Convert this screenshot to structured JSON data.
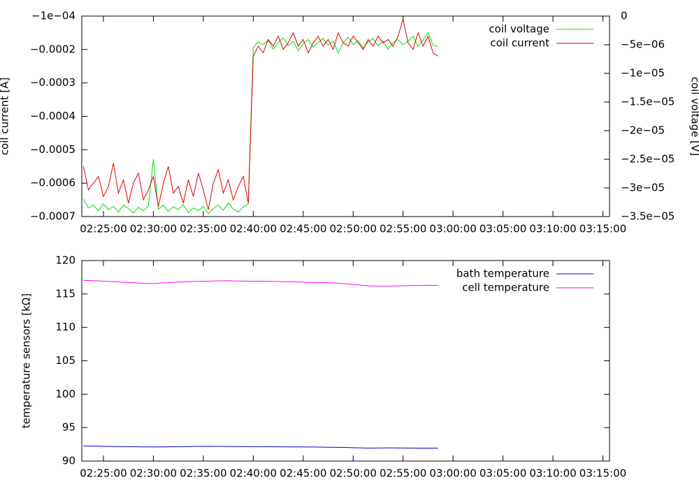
{
  "chart_data": [
    {
      "type": "line",
      "x": [
        "02:23:00",
        "02:23:30",
        "02:24:00",
        "02:24:30",
        "02:25:00",
        "02:25:30",
        "02:26:00",
        "02:26:30",
        "02:27:00",
        "02:27:30",
        "02:28:00",
        "02:28:30",
        "02:29:00",
        "02:29:30",
        "02:30:00",
        "02:30:30",
        "02:31:00",
        "02:31:30",
        "02:32:00",
        "02:32:30",
        "02:33:00",
        "02:33:30",
        "02:34:00",
        "02:34:30",
        "02:35:00",
        "02:35:30",
        "02:36:00",
        "02:36:30",
        "02:37:00",
        "02:37:30",
        "02:38:00",
        "02:38:30",
        "02:39:00",
        "02:39:30",
        "02:40:00",
        "02:40:30",
        "02:41:00",
        "02:41:30",
        "02:42:00",
        "02:42:30",
        "02:43:00",
        "02:43:30",
        "02:44:00",
        "02:44:30",
        "02:45:00",
        "02:45:30",
        "02:46:00",
        "02:46:30",
        "02:47:00",
        "02:47:30",
        "02:48:00",
        "02:48:30",
        "02:49:00",
        "02:49:30",
        "02:50:00",
        "02:50:30",
        "02:51:00",
        "02:51:30",
        "02:52:00",
        "02:52:30",
        "02:53:00",
        "02:53:30",
        "02:54:00",
        "02:54:30",
        "02:55:00",
        "02:55:30",
        "02:56:00",
        "02:56:30",
        "02:57:00",
        "02:57:30",
        "02:58:00",
        "02:58:30"
      ],
      "xlim": [
        "02:22:50",
        "03:15:40"
      ],
      "xticks": [
        "02:25:00",
        "02:30:00",
        "02:35:00",
        "02:40:00",
        "02:45:00",
        "02:50:00",
        "02:55:00",
        "03:00:00",
        "03:05:00",
        "03:10:00",
        "03:15:00"
      ],
      "y_label": "coil current [A]",
      "ylim": [
        -0.0007,
        -0.0001
      ],
      "yticks": [
        {
          "value": -0.0001,
          "label": "−1e−04"
        },
        {
          "value": -0.0002,
          "label": "−0.0002"
        },
        {
          "value": -0.0003,
          "label": "−0.0003"
        },
        {
          "value": -0.0004,
          "label": "−0.0004"
        },
        {
          "value": -0.0005,
          "label": "−0.0005"
        },
        {
          "value": -0.0006,
          "label": "−0.0006"
        },
        {
          "value": -0.0007,
          "label": "−0.0007"
        }
      ],
      "y2_label": "coil voltage [V]",
      "y2lim": [
        -3.5e-05,
        0
      ],
      "y2ticks": [
        0,
        {
          "value": -5e-06,
          "label": "−5e−06"
        },
        {
          "value": -1e-05,
          "label": "−1e−05"
        },
        {
          "value": -1.5e-05,
          "label": "−1.5e−05"
        },
        {
          "value": -2e-05,
          "label": "−2e−05"
        },
        {
          "value": -2.5e-05,
          "label": "−2.5e−05"
        },
        {
          "value": -3e-05,
          "label": "−3e−05"
        },
        {
          "value": -3.5e-05,
          "label": "−3.5e−05"
        }
      ],
      "legend": "top-right",
      "series": [
        {
          "name": "coil voltage",
          "color": "#00e000",
          "axis": "y2",
          "values": [
            -3.2e-05,
            -3.35e-05,
            -3.3e-05,
            -3.4e-05,
            -3.28e-05,
            -3.38e-05,
            -3.32e-05,
            -3.42e-05,
            -3.3e-05,
            -3.36e-05,
            -3.44e-05,
            -3.34e-05,
            -3.4e-05,
            -3.31e-05,
            -2.5e-05,
            -3.37e-05,
            -3.3e-05,
            -3.41e-05,
            -3.33e-05,
            -3.38e-05,
            -3.29e-05,
            -3.43e-05,
            -3.35e-05,
            -3.4e-05,
            -3.32e-05,
            -3.45e-05,
            -3.36e-05,
            -3.3e-05,
            -3.39e-05,
            -3.26e-05,
            -3.37e-05,
            -3.42e-05,
            -3.33e-05,
            -3.28e-05,
            -5.5e-06,
            -4.5e-06,
            -5e-06,
            -4.2e-06,
            -5.8e-06,
            -4.6e-06,
            -3.8e-06,
            -5.2e-06,
            -4.4e-06,
            -6e-06,
            -4.8e-06,
            -4.1e-06,
            -5.4e-06,
            -4.6e-06,
            -3.9e-06,
            -5.1e-06,
            -4.4e-06,
            -6.5e-06,
            -4.7e-06,
            -3.7e-06,
            -5e-06,
            -4.3e-06,
            -5.6e-06,
            -4.5e-06,
            -3.9e-06,
            -5.2e-06,
            -4.4e-06,
            -5.8e-06,
            -4.6e-06,
            -4.1e-06,
            -5e-06,
            -4.4e-06,
            -3.5e-06,
            -5.3e-06,
            -4.2e-06,
            -2.9e-06,
            -5.1e-06,
            -5.3e-06
          ]
        },
        {
          "name": "coil current",
          "color": "#e00000",
          "values": [
            -0.00055,
            -0.00062,
            -0.0006,
            -0.00058,
            -0.00064,
            -0.00061,
            -0.00054,
            -0.00063,
            -0.00059,
            -0.00066,
            -0.0006,
            -0.00057,
            -0.00065,
            -0.00062,
            -0.00058,
            -0.00067,
            -0.0006,
            -0.00055,
            -0.00063,
            -0.00061,
            -0.00066,
            -0.00059,
            -0.00064,
            -0.00057,
            -0.00062,
            -0.00068,
            -0.0006,
            -0.00056,
            -0.00063,
            -0.00059,
            -0.00065,
            -0.00061,
            -0.00058,
            -0.00066,
            -0.00022,
            -0.00019,
            -0.00021,
            -0.00017,
            -0.00019,
            -0.00016,
            -0.0002,
            -0.00018,
            -0.00015,
            -0.00019,
            -0.00017,
            -0.00021,
            -0.00018,
            -0.00016,
            -0.00019,
            -0.00017,
            -0.0002,
            -0.00015,
            -0.00018,
            -0.00019,
            -0.00016,
            -0.00018,
            -0.0002,
            -0.00017,
            -0.00019,
            -0.00016,
            -0.00018,
            -0.00017,
            -0.00019,
            -0.00016,
            -0.00011,
            -0.00018,
            -0.0002,
            -0.00015,
            -0.00019,
            -0.00016,
            -0.00021,
            -0.00022
          ]
        }
      ]
    },
    {
      "type": "line",
      "x": [
        "02:23:00",
        "02:23:30",
        "02:24:00",
        "02:24:30",
        "02:25:00",
        "02:25:30",
        "02:26:00",
        "02:26:30",
        "02:27:00",
        "02:27:30",
        "02:28:00",
        "02:28:30",
        "02:29:00",
        "02:29:30",
        "02:30:00",
        "02:30:30",
        "02:31:00",
        "02:31:30",
        "02:32:00",
        "02:32:30",
        "02:33:00",
        "02:33:30",
        "02:34:00",
        "02:34:30",
        "02:35:00",
        "02:35:30",
        "02:36:00",
        "02:36:30",
        "02:37:00",
        "02:37:30",
        "02:38:00",
        "02:38:30",
        "02:39:00",
        "02:39:30",
        "02:40:00",
        "02:40:30",
        "02:41:00",
        "02:41:30",
        "02:42:00",
        "02:42:30",
        "02:43:00",
        "02:43:30",
        "02:44:00",
        "02:44:30",
        "02:45:00",
        "02:45:30",
        "02:46:00",
        "02:46:30",
        "02:47:00",
        "02:47:30",
        "02:48:00",
        "02:48:30",
        "02:49:00",
        "02:49:30",
        "02:50:00",
        "02:50:30",
        "02:51:00",
        "02:51:30",
        "02:52:00",
        "02:52:30",
        "02:53:00",
        "02:53:30",
        "02:54:00",
        "02:54:30",
        "02:55:00",
        "02:55:30",
        "02:56:00",
        "02:56:30",
        "02:57:00",
        "02:57:30",
        "02:58:00",
        "02:58:30"
      ],
      "xlim": [
        "02:22:50",
        "03:15:40"
      ],
      "xticks": [
        "02:25:00",
        "02:30:00",
        "02:35:00",
        "02:40:00",
        "02:45:00",
        "02:50:00",
        "02:55:00",
        "03:00:00",
        "03:05:00",
        "03:10:00",
        "03:15:00"
      ],
      "y_label": "temperature sensors [kΩ]",
      "ylim": [
        90,
        120
      ],
      "yticks": [
        90,
        95,
        100,
        105,
        110,
        115,
        120
      ],
      "legend": "top-right",
      "series": [
        {
          "name": "bath temperature",
          "color": "#0000e0",
          "values": [
            92.25,
            92.24,
            92.23,
            92.22,
            92.2,
            92.19,
            92.18,
            92.17,
            92.16,
            92.15,
            92.14,
            92.13,
            92.12,
            92.11,
            92.1,
            92.11,
            92.12,
            92.13,
            92.14,
            92.15,
            92.16,
            92.17,
            92.18,
            92.19,
            92.2,
            92.21,
            92.2,
            92.19,
            92.19,
            92.18,
            92.18,
            92.17,
            92.17,
            92.16,
            92.16,
            92.15,
            92.15,
            92.14,
            92.14,
            92.13,
            92.13,
            92.12,
            92.12,
            92.11,
            92.11,
            92.1,
            92.1,
            92.09,
            92.08,
            92.07,
            92.06,
            92.05,
            92.04,
            92.02,
            92.0,
            91.98,
            91.96,
            91.95,
            91.95,
            91.96,
            91.96,
            91.97,
            91.97,
            91.96,
            91.96,
            91.95,
            91.95,
            91.94,
            91.94,
            91.94,
            91.93,
            91.93
          ]
        },
        {
          "name": "cell temperature",
          "color": "#ff00ff",
          "values": [
            117.05,
            117.02,
            117.0,
            116.96,
            116.92,
            116.88,
            116.85,
            116.8,
            116.75,
            116.72,
            116.68,
            116.64,
            116.6,
            116.58,
            116.56,
            116.6,
            116.65,
            116.7,
            116.74,
            116.78,
            116.8,
            116.83,
            116.86,
            116.88,
            116.9,
            116.92,
            116.94,
            116.96,
            116.97,
            116.98,
            116.96,
            116.94,
            116.93,
            116.92,
            116.9,
            116.91,
            116.92,
            116.9,
            116.88,
            116.86,
            116.84,
            116.82,
            116.8,
            116.78,
            116.76,
            116.74,
            116.72,
            116.7,
            116.72,
            116.7,
            116.65,
            116.6,
            116.55,
            116.48,
            116.42,
            116.35,
            116.28,
            116.22,
            116.18,
            116.15,
            116.15,
            116.17,
            116.2,
            116.22,
            116.24,
            116.25,
            116.27,
            116.28,
            116.3,
            116.3,
            116.3,
            116.29
          ]
        }
      ]
    }
  ]
}
